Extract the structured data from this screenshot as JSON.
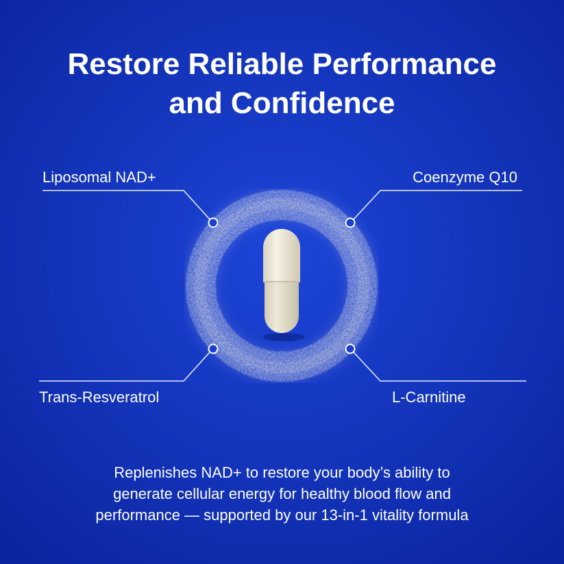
{
  "header": {
    "title_lines": [
      "Restore Reliable Performance",
      "and Confidence"
    ]
  },
  "ingredients": [
    {
      "label": "Liposomal NAD+"
    },
    {
      "label": "Coenzyme Q10"
    },
    {
      "label": "Trans-Resveratrol"
    },
    {
      "label": "L-Carnitine"
    }
  ],
  "description_lines": [
    "Replenishes NAD+ to restore your body’s ability to",
    "generate cellular energy for healthy blood flow and",
    "performance — supported by our 13-in-1 vitality formula"
  ]
}
